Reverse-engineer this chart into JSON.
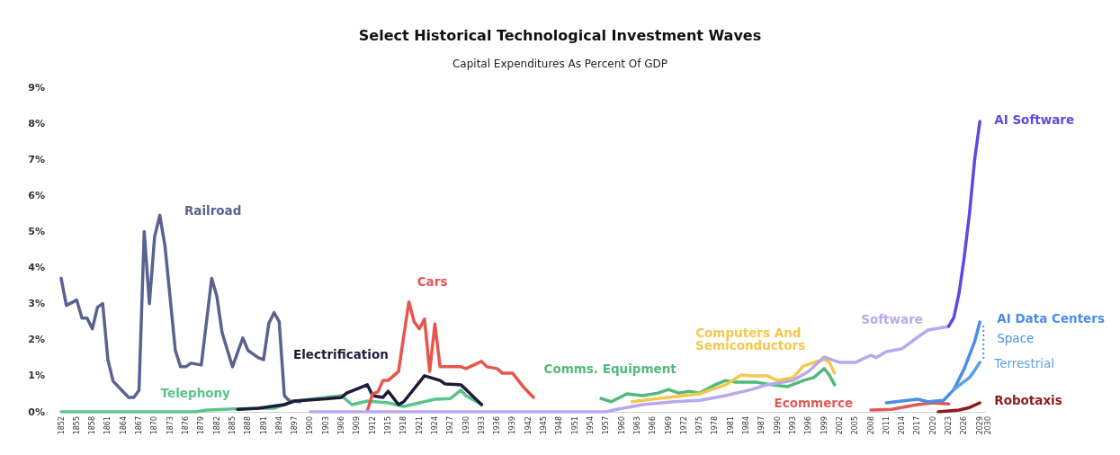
{
  "chart_data": {
    "type": "line",
    "title": "Select Historical Technological Investment Waves",
    "subtitle": "Capital Expenditures As Percent Of GDP",
    "annotations": [
      "AI Data Centers"
    ],
    "marker": "none",
    "line_style": "solid",
    "grid": false,
    "xlim": [
      1852,
      2030
    ],
    "xticks": [
      1852,
      1855,
      1858,
      1861,
      1864,
      1867,
      1870,
      1873,
      1876,
      1879,
      1882,
      1885,
      1888,
      1891,
      1894,
      1897,
      1900,
      1903,
      1906,
      1909,
      1912,
      1915,
      1918,
      1921,
      1924,
      1927,
      1930,
      1933,
      1936,
      1939,
      1942,
      1945,
      1948,
      1951,
      1954,
      1957,
      1960,
      1963,
      1966,
      1969,
      1972,
      1975,
      1978,
      1981,
      1984,
      1987,
      1990,
      1993,
      1996,
      1999,
      2002,
      2005,
      2008,
      2011,
      2014,
      2017,
      2020,
      2023,
      2026,
      2029,
      2030
    ],
    "ylim": [
      0,
      9
    ],
    "yticks": [
      {
        "value": 0,
        "label": "0%"
      },
      {
        "value": 1,
        "label": "1%"
      },
      {
        "value": 2,
        "label": "2%"
      },
      {
        "value": 3,
        "label": "3%"
      },
      {
        "value": 4,
        "label": "4%"
      },
      {
        "value": 5,
        "label": "5%"
      },
      {
        "value": 6,
        "label": "6%"
      },
      {
        "value": 7,
        "label": "7%"
      },
      {
        "value": 8,
        "label": "8%"
      },
      {
        "value": 9,
        "label": "9%"
      }
    ],
    "series": [
      {
        "name": "Railroad",
        "color": "#5b6290",
        "x": [
          1852,
          1853,
          1855,
          1856,
          1857,
          1858,
          1859,
          1860,
          1861,
          1862,
          1864,
          1865,
          1866,
          1867,
          1868,
          1869,
          1870,
          1871,
          1872,
          1874,
          1875,
          1876,
          1877,
          1879,
          1881,
          1882,
          1883,
          1885,
          1887,
          1888,
          1890,
          1891,
          1892,
          1893,
          1894,
          1895,
          1896,
          1898
        ],
        "values": [
          3.7,
          2.95,
          3.1,
          2.6,
          2.6,
          2.3,
          2.9,
          3.0,
          1.45,
          0.85,
          0.55,
          0.4,
          0.4,
          0.6,
          5.0,
          3.0,
          4.85,
          5.45,
          4.6,
          1.7,
          1.25,
          1.25,
          1.35,
          1.3,
          3.7,
          3.2,
          2.2,
          1.25,
          2.05,
          1.7,
          1.5,
          1.45,
          2.45,
          2.75,
          2.5,
          0.45,
          0.3,
          0.28
        ]
      },
      {
        "name": "Telephony",
        "color": "#5cc48a",
        "x": [
          1852,
          1878,
          1880,
          1885,
          1893,
          1895,
          1897,
          1900,
          1903,
          1906,
          1908,
          1911,
          1915,
          1918,
          1921,
          1924,
          1927,
          1929,
          1930,
          1933
        ],
        "values": [
          0,
          0,
          0.05,
          0.08,
          0.1,
          0.2,
          0.3,
          0.35,
          0.4,
          0.45,
          0.2,
          0.3,
          0.25,
          0.15,
          0.25,
          0.35,
          0.37,
          0.6,
          0.45,
          0.2
        ]
      },
      {
        "name": "Electrification",
        "color": "#1c1c3a",
        "x": [
          1886,
          1890,
          1895,
          1897,
          1900,
          1903,
          1906,
          1907,
          1911,
          1912,
          1914,
          1915,
          1917,
          1918,
          1922,
          1925,
          1926,
          1929,
          1930,
          1933
        ],
        "values": [
          0.07,
          0.1,
          0.2,
          0.3,
          0.33,
          0.36,
          0.4,
          0.52,
          0.75,
          0.45,
          0.4,
          0.57,
          0.2,
          0.28,
          1.0,
          0.87,
          0.77,
          0.75,
          0.62,
          0.2
        ]
      },
      {
        "name": "Cars",
        "color": "#e8554e",
        "x": [
          1911,
          1912,
          1913,
          1914,
          1915,
          1917,
          1918,
          1919,
          1920,
          1921,
          1922,
          1923,
          1924,
          1925,
          1929,
          1930,
          1933,
          1934,
          1936,
          1937,
          1939,
          1941,
          1943
        ],
        "values": [
          0.03,
          0.5,
          0.55,
          0.87,
          0.87,
          1.12,
          2.1,
          3.05,
          2.5,
          2.3,
          2.57,
          1.12,
          2.44,
          1.25,
          1.25,
          1.2,
          1.4,
          1.25,
          1.2,
          1.07,
          1.07,
          0.7,
          0.4
        ]
      },
      {
        "name": "Comms. Equipment",
        "color": "#52b97a",
        "x": [
          1956,
          1958,
          1961,
          1964,
          1967,
          1969,
          1971,
          1973,
          1975,
          1978,
          1980,
          1982,
          1986,
          1989,
          1992,
          1995,
          1997,
          1999,
          2000,
          2001
        ],
        "values": [
          0.37,
          0.28,
          0.5,
          0.45,
          0.52,
          0.62,
          0.52,
          0.57,
          0.52,
          0.75,
          0.87,
          0.82,
          0.82,
          0.75,
          0.7,
          0.87,
          0.95,
          1.2,
          1.02,
          0.75
        ]
      },
      {
        "name": "Computers And Semiconductors",
        "color": "#f5c84c",
        "x": [
          1962,
          1967,
          1972,
          1975,
          1980,
          1983,
          1985,
          1988,
          1990,
          1993,
          1995,
          1997,
          1999,
          2000,
          2001
        ],
        "values": [
          0.28,
          0.37,
          0.45,
          0.5,
          0.75,
          1.02,
          1.0,
          1.0,
          0.87,
          0.95,
          1.27,
          1.37,
          1.45,
          1.37,
          1.07
        ]
      },
      {
        "name": "Software",
        "color": "#b8a8ee",
        "x": [
          1900,
          1957,
          1959,
          1964,
          1970,
          1975,
          1980,
          1985,
          1988,
          1993,
          1996,
          1999,
          2002,
          2005,
          2008,
          2009,
          2011,
          2014,
          2017,
          2019,
          2023
        ],
        "values": [
          0,
          0,
          0.07,
          0.2,
          0.28,
          0.32,
          0.45,
          0.62,
          0.75,
          0.87,
          1.12,
          1.52,
          1.37,
          1.37,
          1.57,
          1.5,
          1.67,
          1.75,
          2.07,
          2.27,
          2.37
        ]
      },
      {
        "name": "Ecommerce",
        "color": "#e05a5a",
        "x": [
          2008,
          2012,
          2017,
          2020,
          2023
        ],
        "values": [
          0.05,
          0.07,
          0.2,
          0.25,
          0.22
        ]
      },
      {
        "name": "AI Software",
        "color": "#6247e0",
        "x": [
          2023,
          2024,
          2025,
          2026,
          2027,
          2028,
          2029
        ],
        "values": [
          2.37,
          2.62,
          3.3,
          4.3,
          5.5,
          7.0,
          8.05
        ]
      },
      {
        "name": "Space",
        "color": "#4a8ee8",
        "x": [
          2011,
          2015,
          2017,
          2019,
          2022,
          2024,
          2026,
          2028,
          2029
        ],
        "values": [
          0.25,
          0.32,
          0.35,
          0.28,
          0.32,
          0.62,
          1.2,
          1.95,
          2.49
        ]
      },
      {
        "name": "Terrestrial",
        "color": "#5c9ee8",
        "x": [
          2024,
          2027,
          2028,
          2029
        ],
        "values": [
          0.62,
          0.95,
          1.15,
          1.37
        ]
      },
      {
        "name": "Robotaxis",
        "color": "#8b1c1c",
        "x": [
          2021,
          2025,
          2027,
          2029
        ],
        "values": [
          0,
          0.05,
          0.12,
          0.25
        ]
      }
    ]
  }
}
